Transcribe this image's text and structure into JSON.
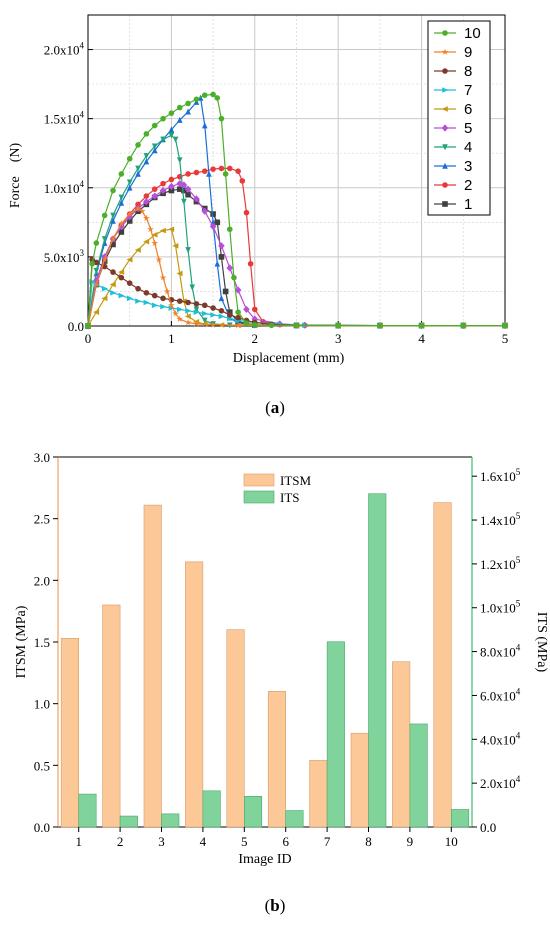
{
  "figure": {
    "caption_a": {
      "open": "(",
      "letter": "a",
      "close": ")"
    },
    "caption_b": {
      "open": "(",
      "letter": "b",
      "close": ")"
    }
  },
  "chart_data": [
    {
      "id": "a",
      "type": "line",
      "xlabel": "Displacement (mm)",
      "ylabel": "Force　(N)",
      "xlim": [
        0,
        5
      ],
      "ylim": [
        0,
        22500
      ],
      "xticks": [
        0,
        1,
        2,
        3,
        4,
        5
      ],
      "xtick_labels": [
        "0",
        "1",
        "2",
        "3",
        "4",
        "5"
      ],
      "yticks": [
        0,
        5000,
        10000,
        15000,
        20000
      ],
      "ytick_labels": [
        {
          "m": "0.0",
          "e": ""
        },
        {
          "m": "5.0x10",
          "e": "3"
        },
        {
          "m": "1.0x10",
          "e": "4"
        },
        {
          "m": "1.5x10",
          "e": "4"
        },
        {
          "m": "2.0x10",
          "e": "4"
        }
      ],
      "grid": true,
      "legend_position": "top-right",
      "series": [
        {
          "name": "10",
          "color": "#4caf2a",
          "marker": "circle",
          "x": [
            0,
            0.05,
            0.1,
            0.2,
            0.3,
            0.4,
            0.5,
            0.6,
            0.7,
            0.8,
            0.9,
            1.0,
            1.1,
            1.2,
            1.3,
            1.4,
            1.5,
            1.55,
            1.6,
            1.65,
            1.7,
            1.75,
            1.8,
            1.9,
            2.0,
            2.2,
            2.5,
            3,
            3.5,
            4,
            4.5,
            5
          ],
          "y": [
            0,
            4500,
            6000,
            8000,
            9800,
            11000,
            12100,
            13100,
            13900,
            14500,
            15000,
            15400,
            15800,
            16100,
            16400,
            16700,
            16750,
            16500,
            15000,
            11000,
            7000,
            3500,
            1000,
            200,
            80,
            50,
            40,
            30,
            30,
            30,
            30,
            30
          ]
        },
        {
          "name": "9",
          "color": "#f07f28",
          "marker": "star",
          "x": [
            0,
            0.1,
            0.2,
            0.3,
            0.4,
            0.5,
            0.6,
            0.65,
            0.7,
            0.75,
            0.8,
            0.85,
            0.9,
            0.95,
            1.0,
            1.05,
            1.1,
            1.2,
            1.3,
            1.5,
            1.8,
            2.0,
            2.5,
            3,
            3.5,
            4,
            4.5,
            5
          ],
          "y": [
            0,
            3000,
            4800,
            6300,
            7400,
            8100,
            8500,
            8300,
            7800,
            7000,
            6000,
            4800,
            3500,
            2500,
            1500,
            900,
            500,
            250,
            150,
            80,
            50,
            40,
            30,
            30,
            30,
            30,
            30,
            30
          ]
        },
        {
          "name": "8",
          "color": "#7b3a2c",
          "marker": "circle",
          "x": [
            0,
            0.05,
            0.1,
            0.2,
            0.3,
            0.4,
            0.5,
            0.6,
            0.7,
            0.8,
            0.9,
            1.0,
            1.1,
            1.2,
            1.3,
            1.4,
            1.5,
            1.6,
            1.7,
            1.8,
            1.9,
            2.0,
            2.2,
            2.5,
            3,
            3.5,
            4,
            4.5,
            5
          ],
          "y": [
            0,
            4800,
            4600,
            4300,
            3900,
            3500,
            3100,
            2700,
            2400,
            2200,
            2000,
            1900,
            1800,
            1700,
            1600,
            1500,
            1300,
            1100,
            800,
            600,
            400,
            250,
            120,
            60,
            40,
            30,
            30,
            30,
            30
          ]
        },
        {
          "name": "7",
          "color": "#1fbfd8",
          "marker": "triangle-right",
          "x": [
            0,
            0.05,
            0.1,
            0.2,
            0.3,
            0.4,
            0.5,
            0.6,
            0.7,
            0.8,
            0.9,
            1.0,
            1.1,
            1.2,
            1.3,
            1.4,
            1.5,
            1.6,
            1.7,
            1.8,
            2.0,
            2.3,
            2.6,
            3,
            3.5,
            4,
            4.5,
            5
          ],
          "y": [
            0,
            3200,
            3000,
            2700,
            2400,
            2200,
            2000,
            1800,
            1700,
            1500,
            1400,
            1300,
            1200,
            1100,
            1000,
            900,
            800,
            700,
            550,
            400,
            250,
            120,
            60,
            40,
            30,
            30,
            30,
            30
          ]
        },
        {
          "name": "6",
          "color": "#c49a10",
          "marker": "triangle-left",
          "x": [
            0,
            0.1,
            0.2,
            0.3,
            0.4,
            0.5,
            0.6,
            0.7,
            0.8,
            0.9,
            1.0,
            1.05,
            1.1,
            1.15,
            1.2,
            1.3,
            1.4,
            1.6,
            1.8,
            2.0,
            2.5,
            3,
            3.5,
            4,
            4.5,
            5
          ],
          "y": [
            0,
            1000,
            2000,
            3000,
            3900,
            4800,
            5500,
            6100,
            6600,
            6900,
            7000,
            5800,
            3800,
            1800,
            700,
            300,
            150,
            80,
            50,
            40,
            30,
            30,
            30,
            30,
            30,
            30
          ]
        },
        {
          "name": "5",
          "color": "#b64fd9",
          "marker": "diamond",
          "x": [
            0,
            0.1,
            0.2,
            0.3,
            0.4,
            0.5,
            0.6,
            0.7,
            0.8,
            0.9,
            1.0,
            1.1,
            1.15,
            1.2,
            1.3,
            1.4,
            1.5,
            1.6,
            1.7,
            1.8,
            1.9,
            2.0,
            2.3,
            2.6,
            3,
            3.5,
            4,
            4.5,
            5
          ],
          "y": [
            0,
            3300,
            5000,
            6300,
            7200,
            7900,
            8500,
            9000,
            9400,
            9800,
            10100,
            10300,
            10200,
            9900,
            9200,
            8300,
            7200,
            5800,
            4200,
            2600,
            1200,
            500,
            150,
            60,
            40,
            30,
            30,
            30,
            30
          ]
        },
        {
          "name": "4",
          "color": "#20a37a",
          "marker": "triangle-down",
          "x": [
            0,
            0.1,
            0.2,
            0.3,
            0.4,
            0.5,
            0.6,
            0.7,
            0.8,
            0.9,
            1.0,
            1.05,
            1.1,
            1.15,
            1.2,
            1.25,
            1.3,
            1.4,
            1.5,
            1.7,
            2.0,
            2.5,
            3,
            3.5,
            4,
            4.5,
            5
          ],
          "y": [
            0,
            4000,
            6300,
            8000,
            9300,
            10400,
            11400,
            12300,
            13000,
            13500,
            13800,
            13500,
            12000,
            9000,
            5500,
            2800,
            1200,
            400,
            150,
            60,
            40,
            30,
            30,
            30,
            30,
            30,
            30
          ]
        },
        {
          "name": "3",
          "color": "#1a6fd6",
          "marker": "triangle-up",
          "x": [
            0,
            0.1,
            0.2,
            0.3,
            0.4,
            0.5,
            0.6,
            0.7,
            0.8,
            0.9,
            1.0,
            1.1,
            1.2,
            1.3,
            1.35,
            1.4,
            1.45,
            1.5,
            1.55,
            1.6,
            1.7,
            1.8,
            2.0,
            2.5,
            3,
            3.5,
            4,
            4.5,
            5
          ],
          "y": [
            0,
            3800,
            6000,
            7600,
            8900,
            10000,
            11000,
            11900,
            12700,
            13500,
            14200,
            14900,
            15500,
            16200,
            16500,
            14500,
            11000,
            7500,
            4500,
            2000,
            600,
            200,
            60,
            40,
            30,
            30,
            30,
            30,
            30
          ]
        },
        {
          "name": "2",
          "color": "#e83a3a",
          "marker": "circle",
          "x": [
            0,
            0.1,
            0.2,
            0.3,
            0.4,
            0.5,
            0.6,
            0.7,
            0.8,
            0.9,
            1.0,
            1.1,
            1.2,
            1.3,
            1.4,
            1.5,
            1.6,
            1.7,
            1.8,
            1.85,
            1.9,
            1.95,
            2.0,
            2.1,
            2.3,
            2.6,
            3,
            3.5,
            4,
            4.5,
            5
          ],
          "y": [
            0,
            3200,
            5000,
            6300,
            7300,
            8100,
            8800,
            9400,
            9900,
            10300,
            10600,
            10800,
            11000,
            11100,
            11200,
            11350,
            11400,
            11400,
            11200,
            10500,
            8200,
            4500,
            1200,
            300,
            100,
            50,
            30,
            30,
            30,
            30,
            30
          ]
        },
        {
          "name": "1",
          "color": "#404040",
          "marker": "square",
          "x": [
            0,
            0.1,
            0.2,
            0.3,
            0.4,
            0.5,
            0.6,
            0.7,
            0.8,
            0.9,
            1.0,
            1.1,
            1.15,
            1.2,
            1.3,
            1.4,
            1.5,
            1.55,
            1.6,
            1.65,
            1.7,
            1.8,
            2.0,
            2.5,
            3,
            3.5,
            4,
            4.5,
            5
          ],
          "y": [
            0,
            3000,
            4700,
            5900,
            6800,
            7600,
            8300,
            8800,
            9300,
            9600,
            9800,
            9900,
            9800,
            9500,
            9000,
            8500,
            8100,
            7500,
            5000,
            2500,
            1000,
            300,
            80,
            40,
            30,
            30,
            30,
            30,
            30
          ]
        }
      ]
    },
    {
      "id": "b",
      "type": "bar",
      "xlabel": "Image ID",
      "ylabel_left": "ITSM (MPa)",
      "ylabel_right": "ITS (MPa)",
      "categories": [
        "1",
        "2",
        "3",
        "4",
        "5",
        "6",
        "7",
        "8",
        "9",
        "10"
      ],
      "ylim_left": [
        0,
        3.0
      ],
      "ylim_right": [
        0,
        168750
      ],
      "yticks_left": [
        "0.0",
        "0.5",
        "1.0",
        "1.5",
        "2.0",
        "2.5",
        "3.0"
      ],
      "yticks_right": [
        {
          "v": 0,
          "m": "0.0",
          "e": ""
        },
        {
          "v": 20000,
          "m": "2.0x10",
          "e": "4"
        },
        {
          "v": 40000,
          "m": "4.0x10",
          "e": "4"
        },
        {
          "v": 60000,
          "m": "6.0x10",
          "e": "4"
        },
        {
          "v": 80000,
          "m": "8.0x10",
          "e": "4"
        },
        {
          "v": 100000,
          "m": "1.0x10",
          "e": "5"
        },
        {
          "v": 120000,
          "m": "1.2x10",
          "e": "5"
        },
        {
          "v": 140000,
          "m": "1.4x10",
          "e": "5"
        },
        {
          "v": 160000,
          "m": "1.6x10",
          "e": "5"
        }
      ],
      "grid": false,
      "legend_position": "top-center",
      "series": [
        {
          "name": "ITSM",
          "axis": "left",
          "color": "#fdc897",
          "values": [
            1.53,
            1.8,
            2.61,
            2.15,
            1.6,
            1.1,
            0.54,
            0.76,
            1.34,
            2.63
          ]
        },
        {
          "name": "ITS",
          "axis": "right",
          "color": "#7fd39b",
          "values": [
            15000,
            5000,
            6000,
            16500,
            14000,
            7500,
            84500,
            152000,
            47000,
            8000
          ]
        }
      ]
    }
  ]
}
